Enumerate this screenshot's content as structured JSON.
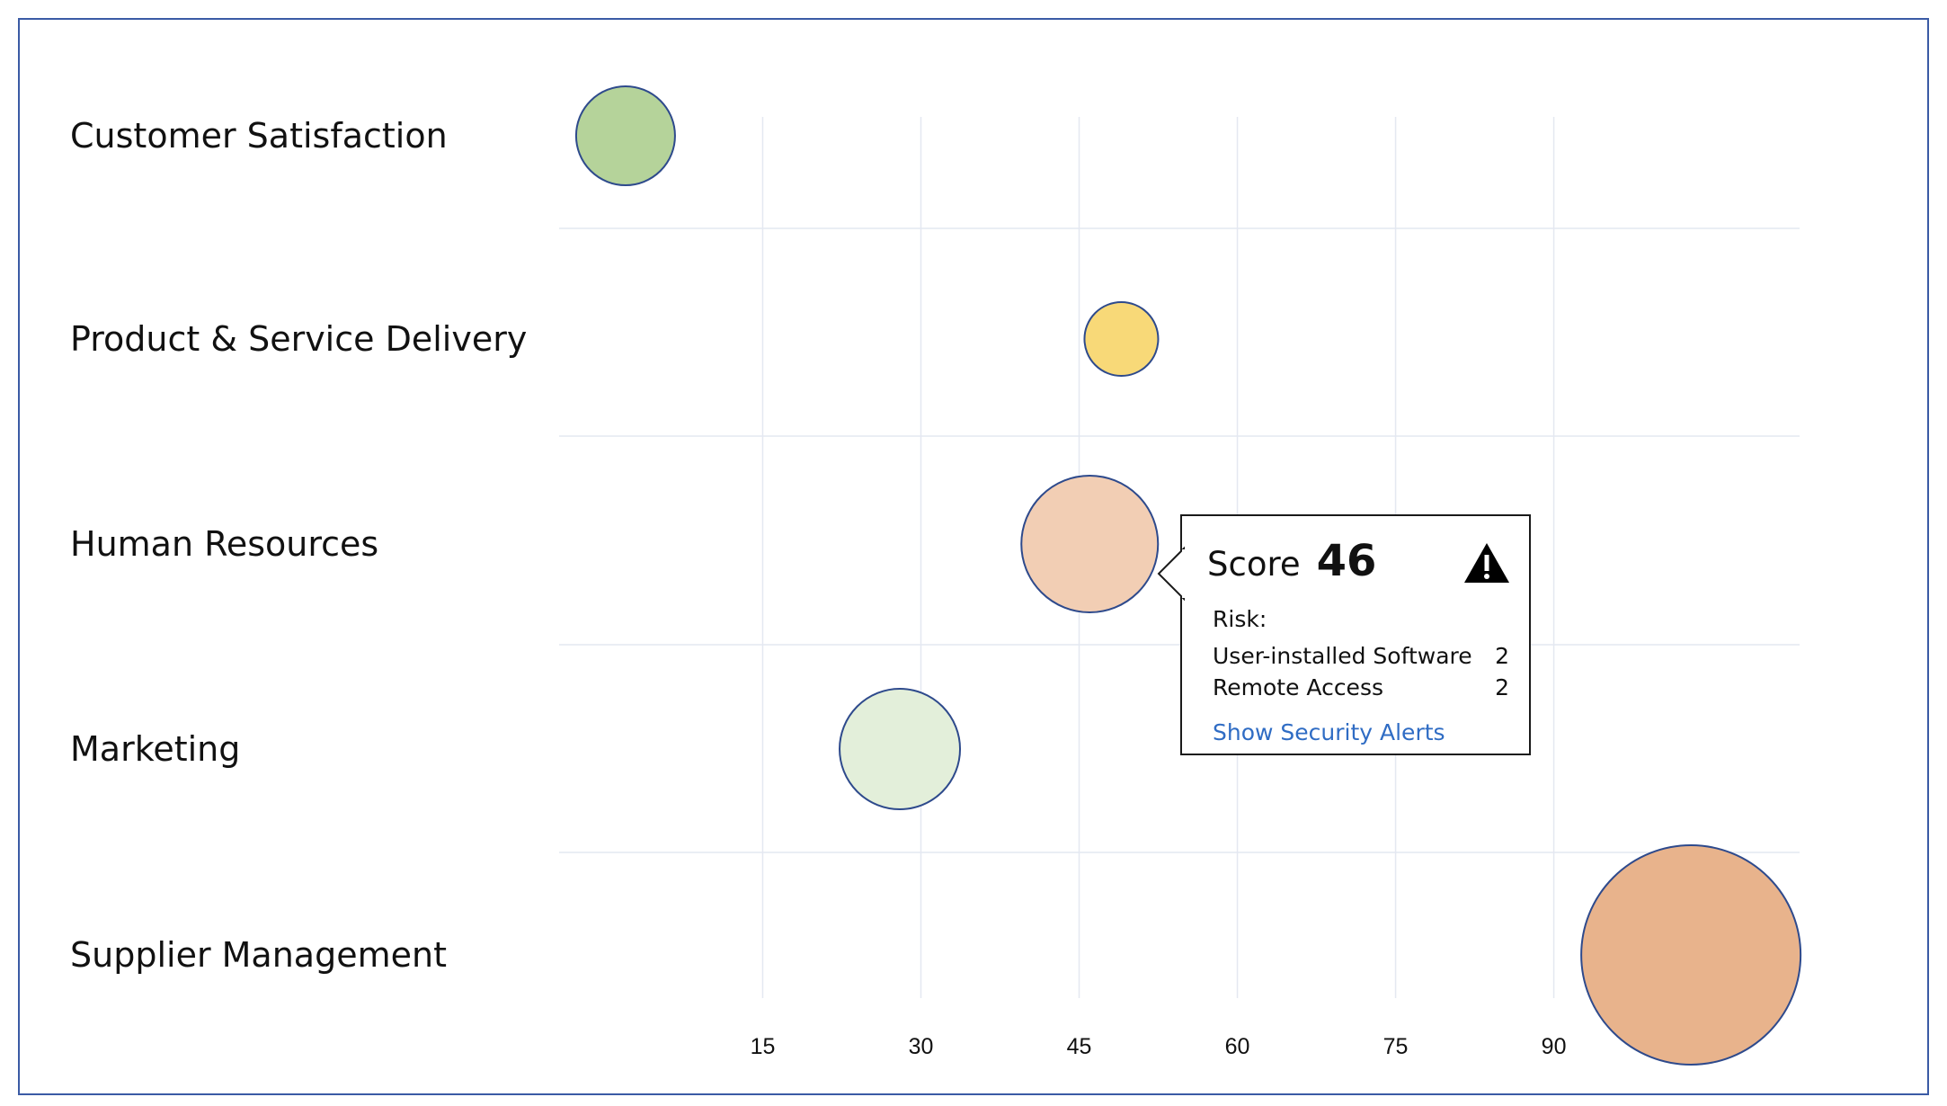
{
  "chart_data": {
    "type": "bubble",
    "title": "",
    "xlabel": "",
    "ylabel": "",
    "x_ticks": [
      15,
      30,
      45,
      60,
      75,
      90
    ],
    "xlim": [
      -4.3,
      113.3
    ],
    "grid": true,
    "categories": [
      "Customer Satisfaction",
      "Product & Service Delivery",
      "Human Resources",
      "Marketing",
      "Supplier Management"
    ],
    "points": [
      {
        "category": "Customer Satisfaction",
        "x": 2,
        "size": 55,
        "color": "#B5D39A"
      },
      {
        "category": "Product & Service Delivery",
        "x": 49,
        "size": 41,
        "color": "#F8D978"
      },
      {
        "category": "Human Resources",
        "x": 46,
        "size": 76,
        "color": "#F2CEB4"
      },
      {
        "category": "Marketing",
        "x": 28,
        "size": 67,
        "color": "#E3EFDA"
      },
      {
        "category": "Supplier Management",
        "x": 103,
        "size": 122,
        "color": "#E8B38C"
      }
    ]
  },
  "tooltip": {
    "score_label": "Score",
    "score_value": "46",
    "warning_icon": "warning-triangle",
    "risk_label": "Risk:",
    "rows": [
      {
        "label": "User-installed Software",
        "value": "2"
      },
      {
        "label": "Remote Access",
        "value": "2"
      }
    ],
    "link_text": "Show Security Alerts",
    "link_color": "#2F6CC4"
  },
  "colors": {
    "frame_border": "#3B5BA5",
    "bubble_stroke": "#2E4A8C",
    "gridline": "#E4E8F1"
  }
}
